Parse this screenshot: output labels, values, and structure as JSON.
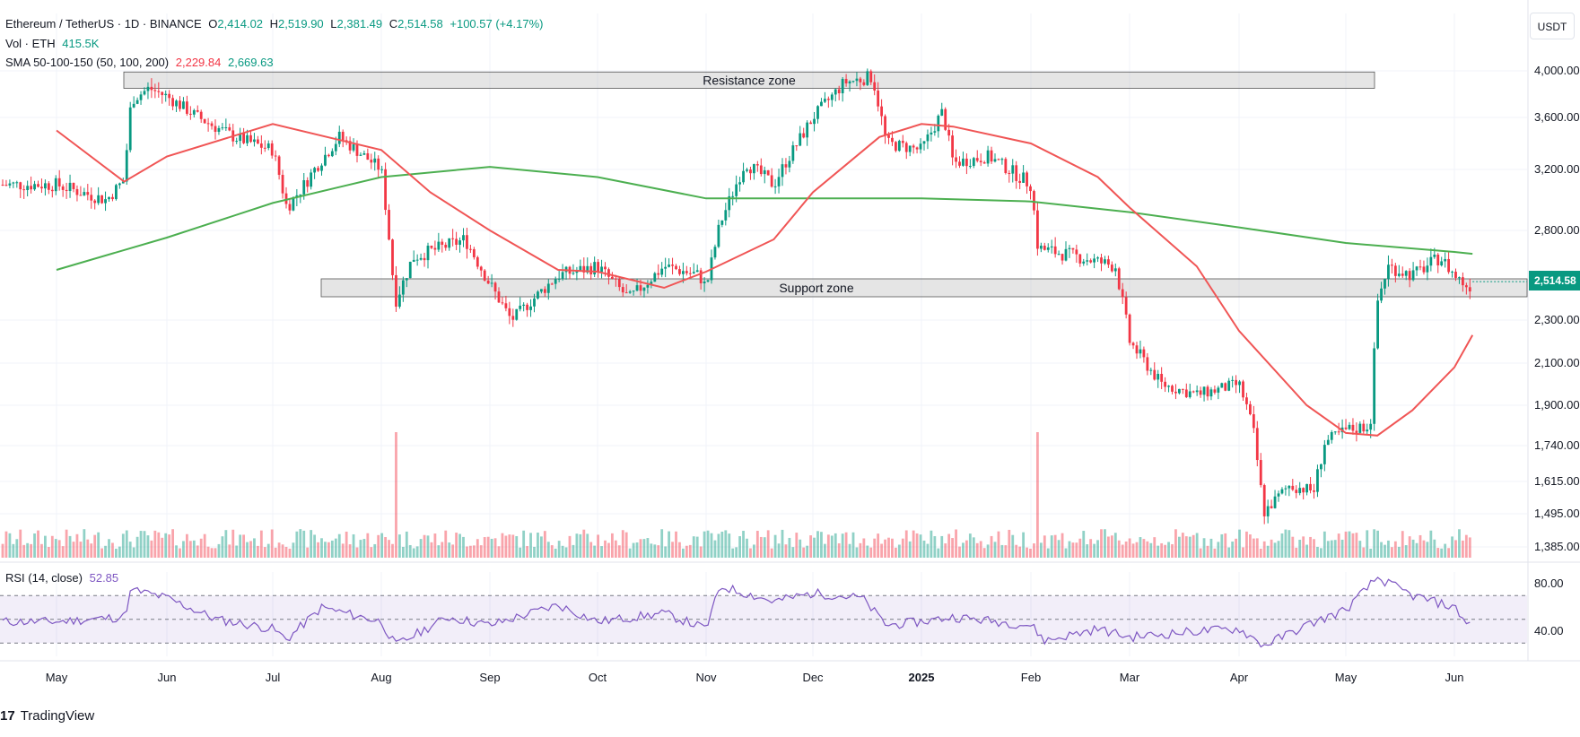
{
  "header": {
    "symbol": "Ethereum / TetherUS · 1D · BINANCE",
    "o_label": "O",
    "o": "2,414.02",
    "h_label": "H",
    "h": "2,519.90",
    "l_label": "L",
    "l": "2,381.49",
    "c_label": "C",
    "c": "2,514.58",
    "change": "+100.57 (+4.17%)"
  },
  "volume_legend": {
    "label": "Vol · ETH",
    "value": "415.5K"
  },
  "sma_legend": {
    "label": "SMA 50-100-150 (50, 100, 200)",
    "v1": "2,229.84",
    "v2": "2,669.63"
  },
  "rsi_legend": {
    "label": "RSI (14, close)",
    "value": "52.85"
  },
  "unit_button": "USDT",
  "last_price_tag": "2,514.58",
  "logo": "TradingView",
  "colors": {
    "up": "#089981",
    "down": "#f23645",
    "sma_short": "#f05555",
    "sma_long": "#4caf50",
    "rsi": "#7e57c2"
  },
  "chart_data": {
    "type": "candlestick",
    "price_axis": [
      {
        "label": "4,000.00",
        "value": 4000
      },
      {
        "label": "3,600.00",
        "value": 3600
      },
      {
        "label": "3,200.00",
        "value": 3200
      },
      {
        "label": "2,800.00",
        "value": 2800
      },
      {
        "label": "2,300.00",
        "value": 2300
      },
      {
        "label": "2,100.00",
        "value": 2100
      },
      {
        "label": "1,900.00",
        "value": 1900
      },
      {
        "label": "1,740.00",
        "value": 1740
      },
      {
        "label": "1,615.00",
        "value": 1615
      },
      {
        "label": "1,495.00",
        "value": 1495
      },
      {
        "label": "1,385.00",
        "value": 1385
      }
    ],
    "time_axis": [
      "May",
      "Jun",
      "Jul",
      "Aug",
      "Sep",
      "Oct",
      "Nov",
      "Dec",
      "2025",
      "Feb",
      "Mar",
      "Apr",
      "May",
      "Jun"
    ],
    "zones": [
      {
        "label": "Resistance zone",
        "low": 3850,
        "high": 3990
      },
      {
        "label": "Support zone",
        "low": 2430,
        "high": 2530
      }
    ],
    "price_anchors": [
      [
        "May",
        3100
      ],
      [
        "May 15",
        3000
      ],
      [
        "May 20",
        3130
      ],
      [
        "May 22",
        3750
      ],
      [
        "May 27",
        3850
      ],
      [
        "Jun",
        3780
      ],
      [
        "Jun 10",
        3600
      ],
      [
        "Jun 20",
        3450
      ],
      [
        "Jul",
        3350
      ],
      [
        "Jul 5",
        2950
      ],
      [
        "Jul 10",
        3100
      ],
      [
        "Jul 20",
        3450
      ],
      [
        "Aug",
        3200
      ],
      [
        "Aug 5",
        2400
      ],
      [
        "Aug 10",
        2650
      ],
      [
        "Aug 25",
        2750
      ],
      [
        "Sep",
        2500
      ],
      [
        "Sep 7",
        2300
      ],
      [
        "Sep 20",
        2550
      ],
      [
        "Oct",
        2600
      ],
      [
        "Oct 10",
        2420
      ],
      [
        "Oct 20",
        2600
      ],
      [
        "Oct 30",
        2550
      ],
      [
        "Nov",
        2480
      ],
      [
        "Nov 5",
        2850
      ],
      [
        "Nov 12",
        3250
      ],
      [
        "Nov 20",
        3100
      ],
      [
        "Dec",
        3600
      ],
      [
        "Dec 10",
        3900
      ],
      [
        "Dec 18",
        3950
      ],
      [
        "Dec 22",
        3400
      ],
      [
        "2025",
        3350
      ],
      [
        "Jan 7",
        3650
      ],
      [
        "Jan 10",
        3250
      ],
      [
        "Jan 20",
        3300
      ],
      [
        "Feb",
        3100
      ],
      [
        "Feb 3",
        2700
      ],
      [
        "Feb 15",
        2650
      ],
      [
        "Feb 25",
        2600
      ],
      [
        "Mar",
        2200
      ],
      [
        "Mar 10",
        2000
      ],
      [
        "Mar 20",
        1950
      ],
      [
        "Apr",
        2000
      ],
      [
        "Apr 5",
        1800
      ],
      [
        "Apr 8",
        1500
      ],
      [
        "Apr 15",
        1600
      ],
      [
        "Apr 22",
        1580
      ],
      [
        "Apr 25",
        1750
      ],
      [
        "May",
        1800
      ],
      [
        "May 8",
        1820
      ],
      [
        "May 10",
        2400
      ],
      [
        "May 13",
        2600
      ],
      [
        "May 20",
        2550
      ],
      [
        "May 28",
        2650
      ],
      [
        "Jun",
        2550
      ],
      [
        "Jun 5",
        2480
      ],
      [
        "Jun 6",
        2514.58
      ]
    ],
    "sma_50": [
      [
        "May",
        3500
      ],
      [
        "May 20",
        3120
      ],
      [
        "Jun",
        3300
      ],
      [
        "Jul",
        3550
      ],
      [
        "Aug",
        3350
      ],
      [
        "Aug 15",
        3050
      ],
      [
        "Sep",
        2800
      ],
      [
        "Sep 20",
        2580
      ],
      [
        "Oct",
        2570
      ],
      [
        "Oct 20",
        2480
      ],
      [
        "Nov",
        2570
      ],
      [
        "Nov 20",
        2750
      ],
      [
        "Dec",
        3050
      ],
      [
        "Dec 20",
        3450
      ],
      [
        "2025",
        3550
      ],
      [
        "Jan 10",
        3530
      ],
      [
        "Feb",
        3400
      ],
      [
        "Feb 20",
        3150
      ],
      [
        "Mar",
        2950
      ],
      [
        "Mar 20",
        2600
      ],
      [
        "Apr",
        2250
      ],
      [
        "Apr 20",
        1900
      ],
      [
        "May",
        1790
      ],
      [
        "May 10",
        1780
      ],
      [
        "May 20",
        1880
      ],
      [
        "Jun",
        2080
      ],
      [
        "Jun 6",
        2229.84
      ]
    ],
    "sma_200": [
      [
        "May",
        2580
      ],
      [
        "Jun",
        2760
      ],
      [
        "Jul",
        2980
      ],
      [
        "Aug",
        3150
      ],
      [
        "Sep",
        3220
      ],
      [
        "Oct",
        3150
      ],
      [
        "Nov",
        3010
      ],
      [
        "Dec",
        3010
      ],
      [
        "2025",
        3010
      ],
      [
        "Feb",
        2990
      ],
      [
        "Mar",
        2920
      ],
      [
        "Apr",
        2820
      ],
      [
        "May",
        2730
      ],
      [
        "Jun",
        2680
      ],
      [
        "Jun 6",
        2669.63
      ]
    ],
    "rsi_axis": [
      {
        "label": "80.00",
        "value": 80
      },
      {
        "label": "40.00",
        "value": 40
      }
    ],
    "rsi_bands": [
      70,
      50,
      30
    ],
    "rsi_anchors": [
      [
        "May",
        48
      ],
      [
        "May 20",
        52
      ],
      [
        "May 22",
        75
      ],
      [
        "Jun",
        68
      ],
      [
        "Jun 15",
        50
      ],
      [
        "Jul",
        42
      ],
      [
        "Jul 5",
        33
      ],
      [
        "Jul 15",
        60
      ],
      [
        "Aug",
        48
      ],
      [
        "Aug 5",
        28
      ],
      [
        "Aug 20",
        52
      ],
      [
        "Sep",
        45
      ],
      [
        "Sep 20",
        62
      ],
      [
        "Oct",
        48
      ],
      [
        "Oct 20",
        55
      ],
      [
        "Nov",
        42
      ],
      [
        "Nov 5",
        78
      ],
      [
        "Nov 20",
        65
      ],
      [
        "Dec",
        72
      ],
      [
        "Dec 15",
        68
      ],
      [
        "Dec 22",
        45
      ],
      [
        "2025",
        48
      ],
      [
        "Jan 10",
        52
      ],
      [
        "Feb",
        45
      ],
      [
        "Feb 5",
        32
      ],
      [
        "Feb 20",
        42
      ],
      [
        "Mar",
        35
      ],
      [
        "Mar 20",
        40
      ],
      [
        "Apr",
        42
      ],
      [
        "Apr 8",
        28
      ],
      [
        "Apr 20",
        45
      ],
      [
        "May",
        58
      ],
      [
        "May 10",
        85
      ],
      [
        "May 20",
        70
      ],
      [
        "Jun",
        60
      ],
      [
        "Jun 5",
        45
      ],
      [
        "Jun 6",
        52.85
      ]
    ],
    "volume_spikes": [
      "Aug 5",
      "Feb 3"
    ]
  }
}
